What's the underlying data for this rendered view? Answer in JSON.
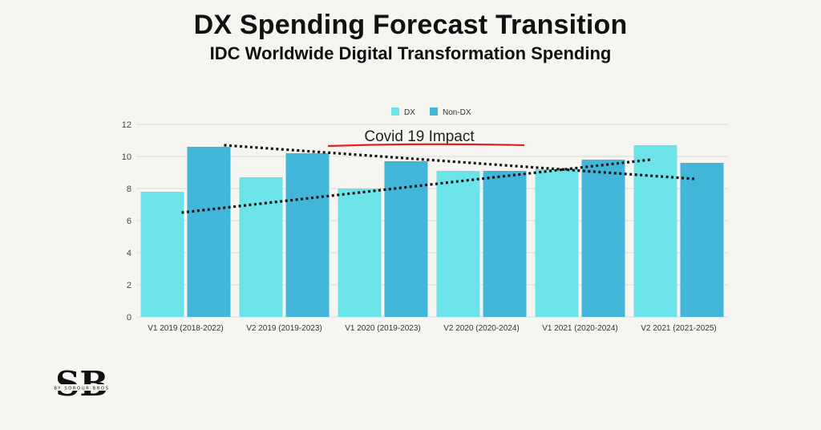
{
  "title": "DX Spending Forecast Transition",
  "subtitle": "IDC Worldwide Digital Transformation Spending",
  "logo": {
    "mark": "SB",
    "tagline": "BY SOROUR BROS",
    "icon": "sorour-bros-logo"
  },
  "chart_data": {
    "type": "bar",
    "categories": [
      "V1 2019 (2018-2022)",
      "V2 2019 (2019-2023)",
      "V1 2020 (2019-2023)",
      "V2 2020 (2020-2024)",
      "V1 2021 (2020-2024)",
      "V2 2021 (2021-2025)"
    ],
    "series": [
      {
        "name": "DX",
        "color": "#6ce3e8",
        "values": [
          7.8,
          8.7,
          8.0,
          9.1,
          9.2,
          10.7
        ]
      },
      {
        "name": "Non-DX",
        "color": "#42b6d8",
        "values": [
          10.6,
          10.2,
          9.7,
          9.1,
          9.8,
          9.6
        ]
      }
    ],
    "ylim": [
      0,
      12
    ],
    "yticks": [
      0,
      2,
      4,
      6,
      8,
      10,
      12
    ],
    "grid": true,
    "legend_position": "top-center",
    "annotation": {
      "text": "Covid 19 Impact",
      "underline_color": "#e02020"
    },
    "trendlines": [
      {
        "name": "dx-trend",
        "from": {
          "category_index": 0,
          "value": 6.5
        },
        "to": {
          "category_index": 5,
          "value": 9.8
        }
      },
      {
        "name": "non-dx-trend",
        "from": {
          "category_index": 0,
          "value": 10.7
        },
        "to": {
          "category_index": 5,
          "value": 8.6
        }
      }
    ],
    "xlabel": "",
    "ylabel": ""
  }
}
